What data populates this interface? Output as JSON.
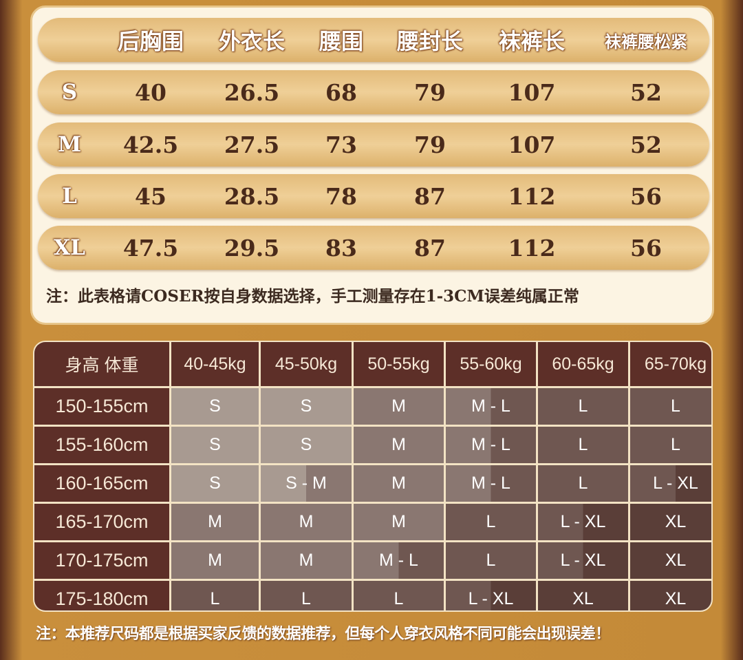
{
  "measurements": {
    "headers": [
      "后胸围",
      "外衣长",
      "腰围",
      "腰封长",
      "袜裤长",
      "袜裤腰松紧"
    ],
    "rows": [
      {
        "size": "S",
        "values": [
          "40",
          "26.5",
          "68",
          "79",
          "107",
          "52"
        ]
      },
      {
        "size": "M",
        "values": [
          "42.5",
          "27.5",
          "73",
          "79",
          "107",
          "52"
        ]
      },
      {
        "size": "L",
        "values": [
          "45",
          "28.5",
          "78",
          "87",
          "112",
          "56"
        ]
      },
      {
        "size": "XL",
        "values": [
          "47.5",
          "29.5",
          "83",
          "87",
          "112",
          "56"
        ]
      }
    ],
    "note": "注：此表格请COSER按自身数据选择，手工测量存在1-3CM误差纯属正常"
  },
  "recommendation": {
    "corner": "身高  体重",
    "weights": [
      "40-45kg",
      "45-50kg",
      "50-55kg",
      "55-60kg",
      "60-65kg",
      "65-70kg"
    ],
    "rows": [
      {
        "height": "150-155cm",
        "sizes": [
          "S",
          "S",
          "M",
          "M - L",
          "L",
          "L"
        ]
      },
      {
        "height": "155-160cm",
        "sizes": [
          "S",
          "S",
          "M",
          "M - L",
          "L",
          "L"
        ]
      },
      {
        "height": "160-165cm",
        "sizes": [
          "S",
          "S - M",
          "M",
          "M - L",
          "L",
          "L - XL"
        ]
      },
      {
        "height": "165-170cm",
        "sizes": [
          "M",
          "M",
          "M",
          "L",
          "L - XL",
          "XL"
        ]
      },
      {
        "height": "170-175cm",
        "sizes": [
          "M",
          "M",
          "M - L",
          "L",
          "L - XL",
          "XL"
        ]
      },
      {
        "height": "175-180cm",
        "sizes": [
          "L",
          "L",
          "L",
          "L - XL",
          "XL",
          "XL"
        ]
      }
    ],
    "size_colors": {
      "S": "#a89a91",
      "M": "#8a7771",
      "L": "#6f5751",
      "XL": "#5a3e38"
    },
    "note": "注：本推荐尺码都是根据买家反馈的数据推荐，但每个人穿衣风格不同可能会出现误差！"
  }
}
